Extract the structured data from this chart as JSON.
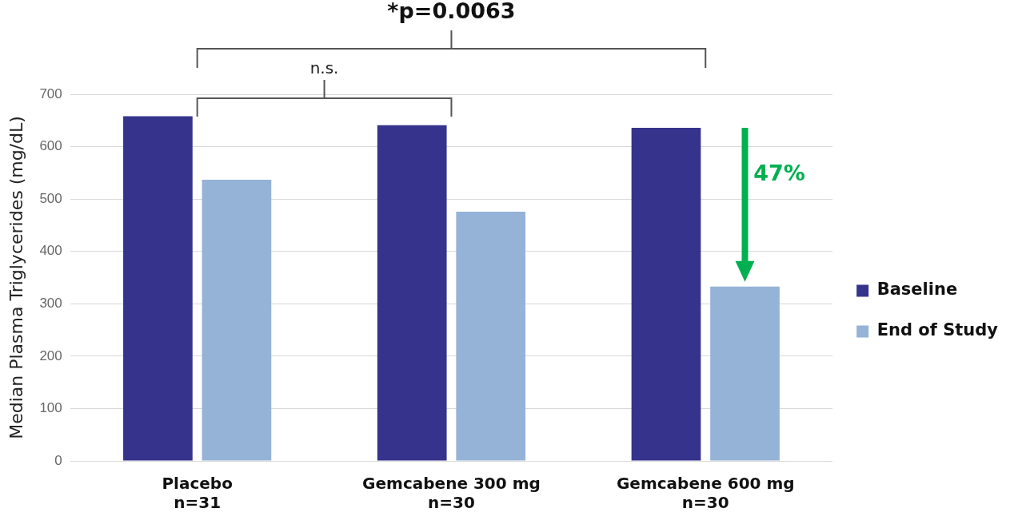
{
  "chart_data": {
    "type": "bar",
    "ylabel": "Median Plasma Triglycerides (mg/dL)",
    "categories": [
      "Placebo\nn=31",
      "Gemcabene 300 mg\nn=30",
      "Gemcabene 600 mg\nn=30"
    ],
    "series": [
      {
        "name": "Baseline",
        "color": "#36338c",
        "values": [
          658,
          641,
          636
        ]
      },
      {
        "name": "End of Study",
        "color": "#95b3d7",
        "values": [
          537,
          476,
          333
        ]
      }
    ],
    "ylim": [
      0,
      700
    ],
    "yticks": [
      0,
      100,
      200,
      300,
      400,
      500,
      600,
      700
    ],
    "grid": "y",
    "legend": "right",
    "annotations": [
      "*p=0.0063",
      "n.s.",
      "47%"
    ]
  }
}
